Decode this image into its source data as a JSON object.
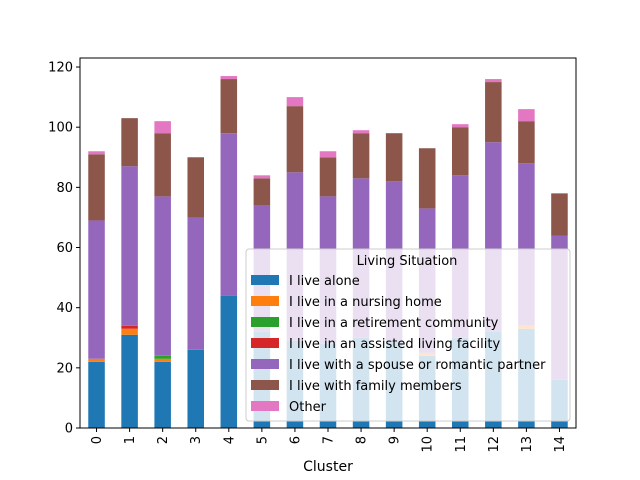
{
  "chart_data": {
    "type": "bar",
    "stacked": true,
    "xlabel": "Cluster",
    "ylabel": "",
    "ylim": [
      0,
      123
    ],
    "yticks": [
      0,
      20,
      40,
      60,
      80,
      100,
      120
    ],
    "categories": [
      "0",
      "1",
      "2",
      "3",
      "4",
      "5",
      "6",
      "7",
      "8",
      "9",
      "10",
      "11",
      "12",
      "13",
      "14"
    ],
    "legend": {
      "title": "Living Situation",
      "placement": "lower-right",
      "semi_transparent": true
    },
    "series": [
      {
        "name": "I live alone",
        "color": "#1f77b4",
        "values": [
          22,
          31,
          22,
          26,
          44,
          32,
          29,
          28,
          30,
          29,
          24,
          30,
          32,
          33,
          16
        ]
      },
      {
        "name": "I live in a nursing home",
        "color": "#ff7f0e",
        "values": [
          1,
          2,
          1,
          0,
          0,
          0,
          0,
          0,
          0,
          0,
          1,
          0,
          0,
          1,
          0
        ]
      },
      {
        "name": "I live in a retirement community",
        "color": "#2ca02c",
        "values": [
          0,
          0,
          1,
          0,
          0,
          0,
          0,
          0,
          0,
          0,
          0,
          0,
          0,
          0,
          0
        ]
      },
      {
        "name": "I live in an assisted living facility",
        "color": "#d62728",
        "values": [
          0,
          1,
          0,
          0,
          0,
          0,
          0,
          0,
          0,
          0,
          0,
          0,
          0,
          0,
          0
        ]
      },
      {
        "name": "I live with a spouse or romantic partner",
        "color": "#9467bd",
        "values": [
          46,
          53,
          53,
          44,
          54,
          42,
          56,
          49,
          53,
          53,
          48,
          54,
          63,
          54,
          48
        ]
      },
      {
        "name": "I live with family members",
        "color": "#8c564b",
        "values": [
          22,
          16,
          21,
          20,
          18,
          9,
          22,
          13,
          15,
          16,
          20,
          16,
          20,
          14,
          14
        ]
      },
      {
        "name": "Other",
        "color": "#e377c2",
        "values": [
          1,
          0,
          4,
          0,
          1,
          1,
          3,
          2,
          1,
          0,
          0,
          1,
          1,
          4,
          0
        ]
      }
    ]
  }
}
